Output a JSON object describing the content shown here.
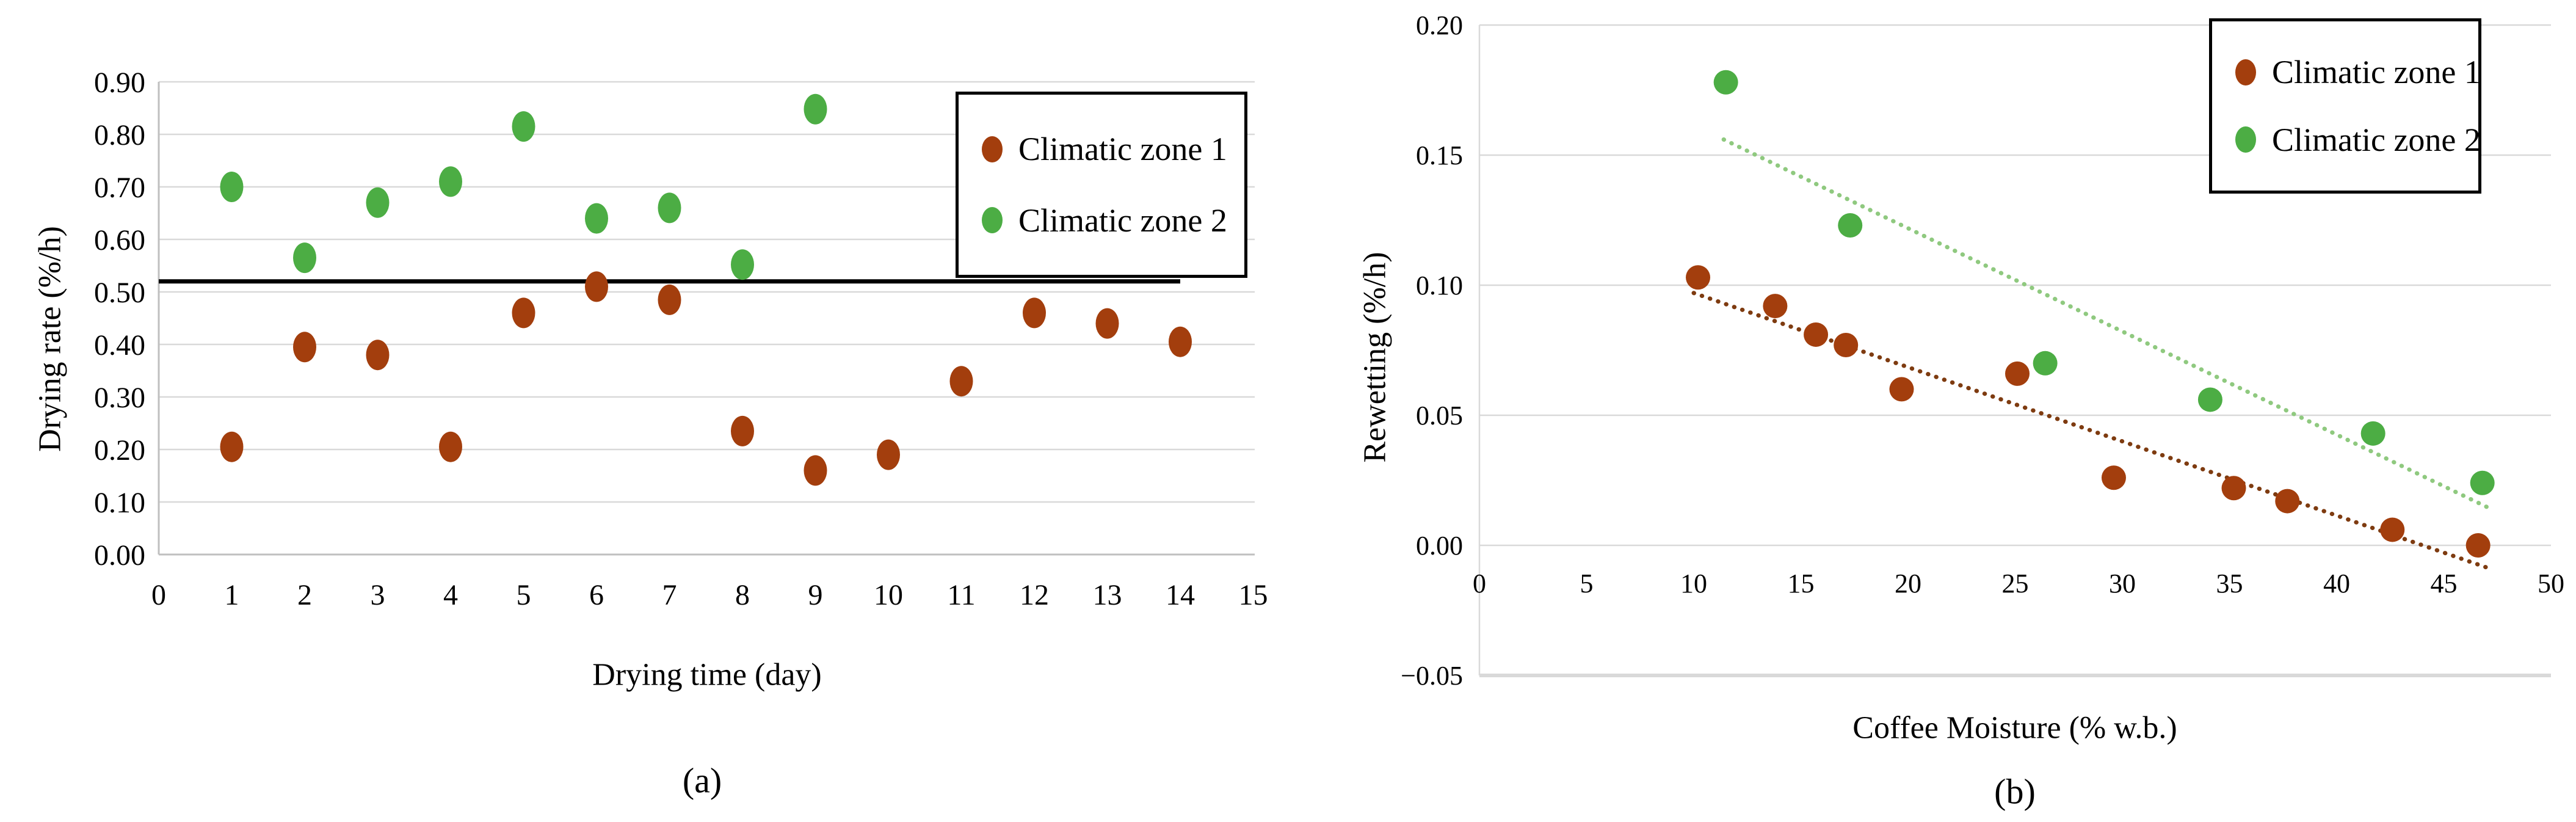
{
  "figure": {
    "background": "#FFFFFF",
    "panels": [
      "a",
      "b"
    ]
  },
  "styles": {
    "grid_color": "#D9D9D9",
    "axis_color_a": "#BFBFBF",
    "axis_color_b": "#D9D9D9",
    "text_color": "#000000",
    "legend_border_color": "#000000",
    "zone1_color": "#A33E0D",
    "zone2_color": "#4CAD44",
    "zone1_trend_color": "#7E3B10",
    "zone2_trend_color": "#8FC97F",
    "reference_line_color": "#000000"
  },
  "chart_data": [
    {
      "id": "a",
      "type": "scatter",
      "title": "",
      "xlabel": "Drying time (day)",
      "ylabel": "Drying rate (%/h)",
      "caption": "(a)",
      "xlim": [
        0,
        15
      ],
      "ylim": [
        0.0,
        0.9
      ],
      "grid": "horizontal",
      "legend_position": "top-right",
      "xticks": [
        "0",
        "1",
        "2",
        "3",
        "4",
        "5",
        "6",
        "7",
        "8",
        "9",
        "10",
        "11",
        "12",
        "13",
        "14",
        "15"
      ],
      "yticks": [
        "0.00",
        "0.10",
        "0.20",
        "0.30",
        "0.40",
        "0.50",
        "0.60",
        "0.70",
        "0.80",
        "0.90"
      ],
      "series": [
        {
          "name": "Climatic zone 1",
          "color": "#A33E0D",
          "points": [
            [
              1,
              0.205
            ],
            [
              2,
              0.395
            ],
            [
              3,
              0.38
            ],
            [
              4,
              0.205
            ],
            [
              5,
              0.46
            ],
            [
              6,
              0.51
            ],
            [
              7,
              0.485
            ],
            [
              8,
              0.235
            ],
            [
              9,
              0.16
            ],
            [
              10,
              0.19
            ],
            [
              11,
              0.33
            ],
            [
              12,
              0.46
            ],
            [
              13,
              0.44
            ],
            [
              14,
              0.405
            ]
          ]
        },
        {
          "name": "Climatic zone 2",
          "color": "#4CAD44",
          "points": [
            [
              1,
              0.7
            ],
            [
              2,
              0.565
            ],
            [
              3,
              0.67
            ],
            [
              4,
              0.71
            ],
            [
              5,
              0.815
            ],
            [
              6,
              0.64
            ],
            [
              7,
              0.66
            ],
            [
              8,
              0.552
            ],
            [
              9,
              0.848
            ]
          ]
        }
      ],
      "reference_line": {
        "y": 0.52,
        "x_start": 0,
        "x_end": 14,
        "color": "#000000"
      }
    },
    {
      "id": "b",
      "type": "scatter",
      "title": "",
      "xlabel": "Coffee Moisture (% w.b.)",
      "ylabel": "Rewetting (%/h)",
      "caption": "(b)",
      "xlim": [
        0,
        50
      ],
      "ylim": [
        -0.05,
        0.2
      ],
      "grid": "horizontal",
      "legend_position": "top-right",
      "xticks": [
        "0",
        "5",
        "10",
        "15",
        "20",
        "25",
        "30",
        "35",
        "40",
        "45",
        "50"
      ],
      "yticks": [
        "−0.05",
        "0.00",
        "0.05",
        "0.10",
        "0.15",
        "0.20"
      ],
      "series": [
        {
          "name": "Climatic zone 1",
          "color": "#A33E0D",
          "points": [
            [
              10.2,
              0.103
            ],
            [
              13.8,
              0.092
            ],
            [
              15.7,
              0.081
            ],
            [
              17.1,
              0.077
            ],
            [
              19.7,
              0.06
            ],
            [
              25.1,
              0.066
            ],
            [
              29.6,
              0.026
            ],
            [
              35.2,
              0.022
            ],
            [
              37.7,
              0.017
            ],
            [
              42.6,
              0.006
            ],
            [
              46.6,
              0.0
            ]
          ],
          "trendline": {
            "style": "dotted",
            "color": "#7E3B10",
            "x_start": 10,
            "y_start": 0.097,
            "x_end": 47,
            "y_end": -0.0085
          }
        },
        {
          "name": "Climatic zone 2",
          "color": "#4CAD44",
          "points": [
            [
              11.5,
              0.178
            ],
            [
              17.3,
              0.123
            ],
            [
              26.4,
              0.07
            ],
            [
              34.1,
              0.056
            ],
            [
              41.7,
              0.043
            ],
            [
              46.8,
              0.024
            ]
          ],
          "trendline": {
            "style": "dotted",
            "color": "#8FC97F",
            "x_start": 11.4,
            "y_start": 0.156,
            "x_end": 47.2,
            "y_end": 0.014
          }
        }
      ]
    }
  ]
}
